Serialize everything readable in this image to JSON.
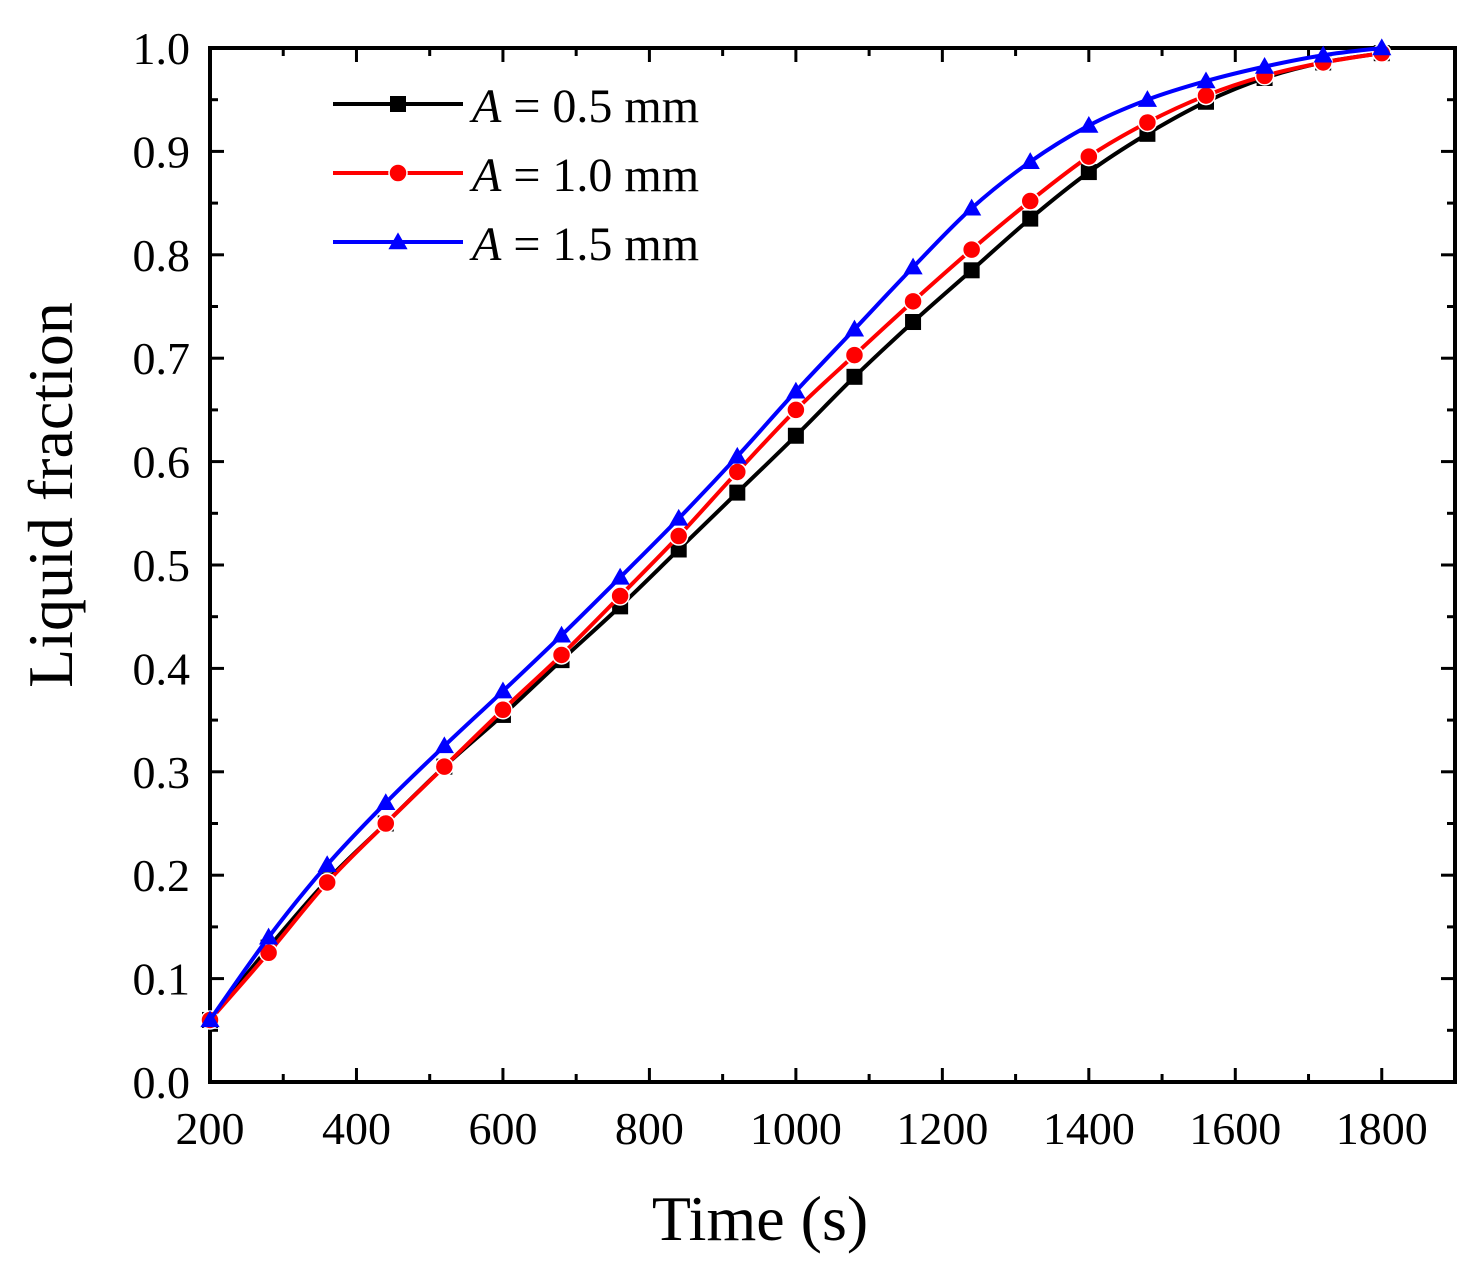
{
  "chart_data": {
    "type": "line",
    "title": "",
    "xlabel": "Time (s)",
    "ylabel": "Liquid fraction",
    "xlim": [
      200,
      1900
    ],
    "ylim": [
      0.0,
      1.0
    ],
    "xticks": [
      200,
      400,
      600,
      800,
      1000,
      1200,
      1400,
      1600,
      1800
    ],
    "xtick_labels": [
      "200",
      "400",
      "600",
      "800",
      "1000",
      "1200",
      "1400",
      "1600",
      "1800"
    ],
    "yticks": [
      0.0,
      0.1,
      0.2,
      0.3,
      0.4,
      0.5,
      0.6,
      0.7,
      0.8,
      0.9,
      1.0
    ],
    "ytick_labels": [
      "0.0",
      "0.1",
      "0.2",
      "0.3",
      "0.4",
      "0.5",
      "0.6",
      "0.7",
      "0.8",
      "0.9",
      "1.0"
    ],
    "grid": false,
    "legend_position": "top-left",
    "x": [
      200,
      280,
      360,
      440,
      520,
      600,
      680,
      760,
      840,
      920,
      1000,
      1080,
      1160,
      1240,
      1320,
      1400,
      1480,
      1560,
      1640,
      1720,
      1800
    ],
    "series": [
      {
        "name_prefix": "A",
        "name_suffix": " = 0.5 mm",
        "color": "#000000",
        "marker": "square",
        "values": [
          0.06,
          0.13,
          0.195,
          0.25,
          0.305,
          0.355,
          0.408,
          0.46,
          0.515,
          0.57,
          0.625,
          0.682,
          0.735,
          0.785,
          0.835,
          0.88,
          0.917,
          0.948,
          0.971,
          0.986,
          0.995
        ]
      },
      {
        "name_prefix": "A",
        "name_suffix": " = 1.0 mm",
        "color": "#ff0000",
        "marker": "circle",
        "values": [
          0.06,
          0.125,
          0.193,
          0.25,
          0.305,
          0.36,
          0.413,
          0.47,
          0.528,
          0.59,
          0.65,
          0.703,
          0.755,
          0.805,
          0.852,
          0.895,
          0.928,
          0.954,
          0.973,
          0.986,
          0.995
        ]
      },
      {
        "name_prefix": "A",
        "name_suffix": " = 1.5 mm",
        "color": "#0000ff",
        "marker": "triangle",
        "values": [
          0.06,
          0.14,
          0.21,
          0.27,
          0.325,
          0.378,
          0.432,
          0.488,
          0.545,
          0.605,
          0.668,
          0.728,
          0.788,
          0.845,
          0.89,
          0.925,
          0.95,
          0.968,
          0.982,
          0.993,
          1.0
        ]
      }
    ]
  }
}
